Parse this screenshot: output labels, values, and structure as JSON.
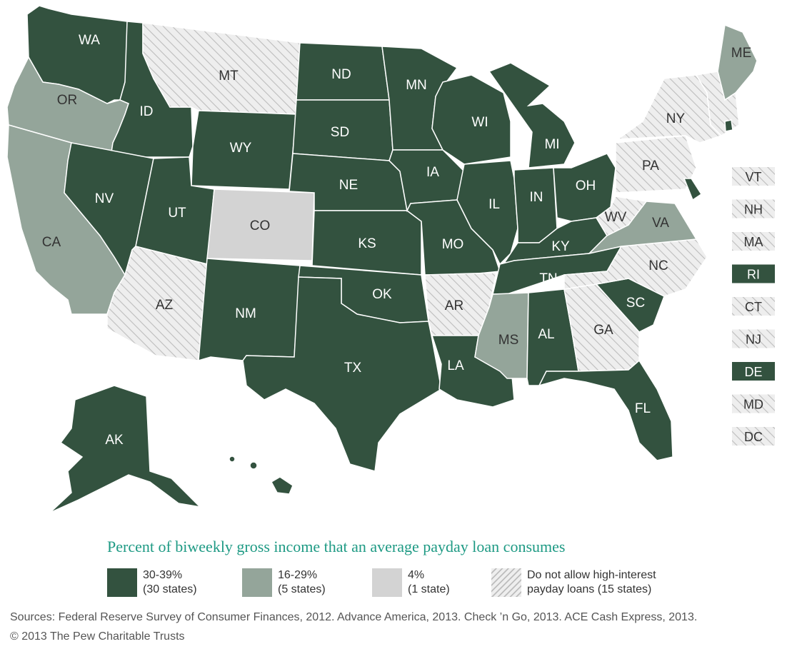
{
  "colors": {
    "c30": "#33523f",
    "c16": "#94a59a",
    "c4": "#d3d3d3",
    "hatch_bg": "#eeeeee",
    "hatch_line": "#bdbdbd",
    "title": "#1e9a84"
  },
  "legend": {
    "title": "Percent of biweekly gross income that an average payday loan consumes",
    "items": [
      {
        "category": "c30",
        "line1": "30-39%",
        "line2": "(30 states)"
      },
      {
        "category": "c16",
        "line1": "16-29%",
        "line2": "(5 states)"
      },
      {
        "category": "c4",
        "line1": "4%",
        "line2": "(1 state)"
      },
      {
        "category": "none",
        "line1": "Do not allow high-interest",
        "line2": "payday loans (15 states)"
      }
    ]
  },
  "states": [
    {
      "abbr": "WA",
      "category": "c30"
    },
    {
      "abbr": "OR",
      "category": "c16"
    },
    {
      "abbr": "CA",
      "category": "c16"
    },
    {
      "abbr": "ID",
      "category": "c30"
    },
    {
      "abbr": "NV",
      "category": "c30"
    },
    {
      "abbr": "MT",
      "category": "none"
    },
    {
      "abbr": "WY",
      "category": "c30"
    },
    {
      "abbr": "UT",
      "category": "c30"
    },
    {
      "abbr": "AZ",
      "category": "none"
    },
    {
      "abbr": "CO",
      "category": "c4"
    },
    {
      "abbr": "NM",
      "category": "c30"
    },
    {
      "abbr": "ND",
      "category": "c30"
    },
    {
      "abbr": "SD",
      "category": "c30"
    },
    {
      "abbr": "NE",
      "category": "c30"
    },
    {
      "abbr": "KS",
      "category": "c30"
    },
    {
      "abbr": "OK",
      "category": "c30"
    },
    {
      "abbr": "TX",
      "category": "c30"
    },
    {
      "abbr": "MN",
      "category": "c30"
    },
    {
      "abbr": "IA",
      "category": "c30"
    },
    {
      "abbr": "MO",
      "category": "c30"
    },
    {
      "abbr": "AR",
      "category": "none"
    },
    {
      "abbr": "LA",
      "category": "c30"
    },
    {
      "abbr": "WI",
      "category": "c30"
    },
    {
      "abbr": "IL",
      "category": "c30"
    },
    {
      "abbr": "MI",
      "category": "c30"
    },
    {
      "abbr": "IN",
      "category": "c30"
    },
    {
      "abbr": "OH",
      "category": "c30"
    },
    {
      "abbr": "KY",
      "category": "c30"
    },
    {
      "abbr": "TN",
      "category": "c30"
    },
    {
      "abbr": "MS",
      "category": "c16"
    },
    {
      "abbr": "AL",
      "category": "c30"
    },
    {
      "abbr": "GA",
      "category": "none"
    },
    {
      "abbr": "FL",
      "category": "c30"
    },
    {
      "abbr": "SC",
      "category": "c30"
    },
    {
      "abbr": "NC",
      "category": "none"
    },
    {
      "abbr": "VA",
      "category": "c16"
    },
    {
      "abbr": "WV",
      "category": "none"
    },
    {
      "abbr": "PA",
      "category": "none"
    },
    {
      "abbr": "NY",
      "category": "none"
    },
    {
      "abbr": "ME",
      "category": "c16"
    },
    {
      "abbr": "AK",
      "category": "c30"
    },
    {
      "abbr": "HI",
      "category": "c30"
    }
  ],
  "small_states": [
    {
      "abbr": "VT",
      "category": "none"
    },
    {
      "abbr": "NH",
      "category": "none"
    },
    {
      "abbr": "MA",
      "category": "none"
    },
    {
      "abbr": "RI",
      "category": "c30"
    },
    {
      "abbr": "CT",
      "category": "none"
    },
    {
      "abbr": "NJ",
      "category": "none"
    },
    {
      "abbr": "DE",
      "category": "c30"
    },
    {
      "abbr": "MD",
      "category": "none"
    },
    {
      "abbr": "DC",
      "category": "none"
    }
  ],
  "sources": "Sources: Federal Reserve Survey of Consumer Finances, 2012. Advance America, 2013. Check ’n Go, 2013. ACE Cash Express, 2013.",
  "copyright": "© 2013 The Pew Charitable Trusts"
}
